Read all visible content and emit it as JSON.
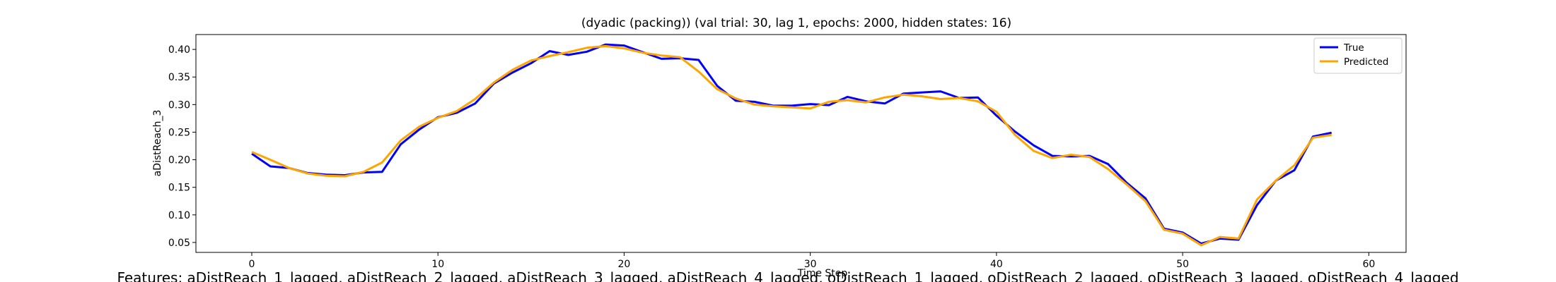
{
  "chart_data": {
    "type": "line",
    "title": "(dyadic (packing)) (val trial: 30, lag 1, epochs: 2000, hidden states: 16)",
    "xlabel": "Time Step",
    "ylabel": "aDistReach_3",
    "xlim": [
      -3,
      62
    ],
    "ylim": [
      0.032,
      0.427
    ],
    "xticks": [
      0,
      10,
      20,
      30,
      40,
      50,
      60
    ],
    "yticks": [
      0.05,
      0.1,
      0.15,
      0.2,
      0.25,
      0.3,
      0.35,
      0.4
    ],
    "ytick_labels": [
      "0.05",
      "0.10",
      "0.15",
      "0.20",
      "0.25",
      "0.30",
      "0.35",
      "0.40"
    ],
    "xtick_labels": [
      "0",
      "10",
      "20",
      "30",
      "40",
      "50",
      "60"
    ],
    "grid": false,
    "legend": "top-right",
    "series": [
      {
        "name": "True",
        "color": "#0000ff",
        "x": [
          0,
          1,
          2,
          3,
          4,
          5,
          6,
          7,
          8,
          9,
          10,
          11,
          12,
          13,
          14,
          15,
          16,
          17,
          18,
          19,
          20,
          21,
          22,
          23,
          24,
          25,
          26,
          27,
          28,
          29,
          30,
          31,
          32,
          33,
          34,
          35,
          36,
          37,
          38,
          39,
          40,
          41,
          42,
          43,
          44,
          45,
          46,
          47,
          48,
          49,
          50,
          51,
          52,
          53,
          54,
          55,
          56,
          57,
          58
        ],
        "values": [
          0.211,
          0.188,
          0.185,
          0.176,
          0.173,
          0.172,
          0.177,
          0.178,
          0.228,
          0.255,
          0.277,
          0.285,
          0.302,
          0.338,
          0.358,
          0.375,
          0.397,
          0.39,
          0.396,
          0.409,
          0.407,
          0.395,
          0.383,
          0.384,
          0.381,
          0.334,
          0.307,
          0.305,
          0.298,
          0.298,
          0.301,
          0.299,
          0.314,
          0.306,
          0.302,
          0.32,
          0.322,
          0.324,
          0.312,
          0.313,
          0.28,
          0.251,
          0.226,
          0.207,
          0.206,
          0.207,
          0.192,
          0.158,
          0.13,
          0.075,
          0.068,
          0.048,
          0.057,
          0.055,
          0.118,
          0.162,
          0.181,
          0.242,
          0.249
        ]
      },
      {
        "name": "Predicted",
        "color": "#ffa500",
        "x": [
          0,
          1,
          2,
          3,
          4,
          5,
          6,
          7,
          8,
          9,
          10,
          11,
          12,
          13,
          14,
          15,
          16,
          17,
          18,
          19,
          20,
          21,
          22,
          23,
          24,
          25,
          26,
          27,
          28,
          29,
          30,
          31,
          32,
          33,
          34,
          35,
          36,
          37,
          38,
          39,
          40,
          41,
          42,
          43,
          44,
          45,
          46,
          47,
          48,
          49,
          50,
          51,
          52,
          53,
          54,
          55,
          56,
          57,
          58
        ],
        "values": [
          0.214,
          0.2,
          0.185,
          0.175,
          0.171,
          0.17,
          0.178,
          0.195,
          0.235,
          0.26,
          0.276,
          0.288,
          0.31,
          0.34,
          0.363,
          0.38,
          0.388,
          0.395,
          0.403,
          0.406,
          0.402,
          0.394,
          0.389,
          0.386,
          0.36,
          0.328,
          0.311,
          0.3,
          0.297,
          0.295,
          0.293,
          0.305,
          0.308,
          0.304,
          0.313,
          0.318,
          0.315,
          0.31,
          0.312,
          0.306,
          0.287,
          0.245,
          0.216,
          0.203,
          0.209,
          0.205,
          0.183,
          0.155,
          0.125,
          0.073,
          0.066,
          0.045,
          0.06,
          0.057,
          0.128,
          0.162,
          0.19,
          0.24,
          0.245
        ]
      }
    ]
  },
  "footer": {
    "caption": "Features: aDistReach_1_lagged, aDistReach_2_lagged, aDistReach_3_lagged, aDistReach_4_lagged, oDistReach_1_lagged, oDistReach_2_lagged, oDistReach_3_lagged, oDistReach_4_lagged"
  }
}
